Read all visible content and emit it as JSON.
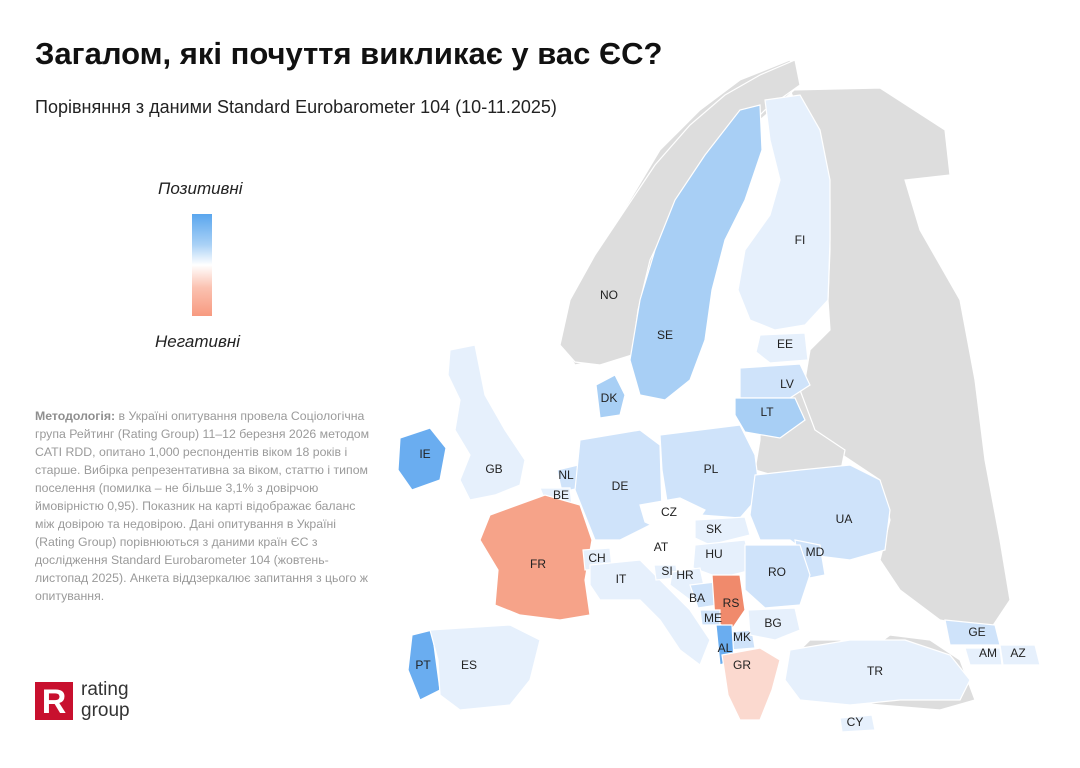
{
  "title": "Загалом, які почуття викликає у вас ЄС?",
  "subtitle": "Порівняння з даними Standard Eurobarometer 104 (10-11.2025)",
  "legend": {
    "top_label": "Позитивні",
    "bottom_label": "Негативні"
  },
  "methodology": {
    "label": "Методологія:",
    "text": " в Україні опитування провела Соціологічна група Рейтинг (Rating Group) 11–12 березня 2026 методом CATI RDD, опитано 1,000 респондентів віком 18 років і старше. Вибірка репрезентативна за віком, статтю і типом поселення (помилка – не більше 3,1% з довірчою ймовірністю 0,95). Показник на карті відображає баланс між довірою та недовірою. Дані опитування в Україні (Rating Group) порівнюються з даними країн ЄС з дослідження Standard Eurobarometer 104 (жовтень-листопад 2025). Анкета віддзеркалює запитання з цього ж опитування."
  },
  "logo": {
    "line1": "rating",
    "line2": "group",
    "mark_letter": "R"
  },
  "colors": {
    "brand_red": "#c8102e",
    "neutral_land": "#dddddd",
    "strong_blue": "#6aadf0",
    "mid_blue": "#a8cff5",
    "light_blue": "#cfe3fa",
    "pale_blue": "#e6f0fc",
    "white": "#ffffff",
    "pale_red": "#fbd9cf",
    "light_red": "#f9c0ad",
    "mid_red": "#f6a389",
    "strong_red": "#f08a6c"
  },
  "countries": [
    {
      "code": "NO",
      "fill": "neutral_land"
    },
    {
      "code": "SE",
      "fill": "mid_blue"
    },
    {
      "code": "FI",
      "fill": "pale_blue"
    },
    {
      "code": "EE",
      "fill": "pale_blue"
    },
    {
      "code": "LV",
      "fill": "light_blue"
    },
    {
      "code": "LT",
      "fill": "mid_blue"
    },
    {
      "code": "DK",
      "fill": "mid_blue"
    },
    {
      "code": "IE",
      "fill": "strong_blue"
    },
    {
      "code": "GB",
      "fill": "neutral_land"
    },
    {
      "code": "NL",
      "fill": "light_blue"
    },
    {
      "code": "BE",
      "fill": "pale_blue"
    },
    {
      "code": "DE",
      "fill": "light_blue"
    },
    {
      "code": "PL",
      "fill": "light_blue"
    },
    {
      "code": "CZ",
      "fill": "white"
    },
    {
      "code": "SK",
      "fill": "pale_blue"
    },
    {
      "code": "UA",
      "fill": "light_blue"
    },
    {
      "code": "FR",
      "fill": "mid_red"
    },
    {
      "code": "CH",
      "fill": "neutral_land"
    },
    {
      "code": "AT",
      "fill": "white"
    },
    {
      "code": "HU",
      "fill": "pale_blue"
    },
    {
      "code": "MD",
      "fill": "neutral_land"
    },
    {
      "code": "RO",
      "fill": "light_blue"
    },
    {
      "code": "IT",
      "fill": "pale_blue"
    },
    {
      "code": "SI",
      "fill": "pale_blue"
    },
    {
      "code": "HR",
      "fill": "pale_blue"
    },
    {
      "code": "BA",
      "fill": "neutral_land"
    },
    {
      "code": "RS",
      "fill": "neutral_land"
    },
    {
      "code": "ME",
      "fill": "neutral_land"
    },
    {
      "code": "MK",
      "fill": "neutral_land"
    },
    {
      "code": "AL",
      "fill": "neutral_land"
    },
    {
      "code": "BG",
      "fill": "pale_blue"
    },
    {
      "code": "GR",
      "fill": "pale_red"
    },
    {
      "code": "PT",
      "fill": "strong_blue"
    },
    {
      "code": "ES",
      "fill": "pale_blue"
    },
    {
      "code": "TR",
      "fill": "neutral_land"
    },
    {
      "code": "GE",
      "fill": "neutral_land"
    },
    {
      "code": "AM",
      "fill": "neutral_land"
    },
    {
      "code": "AZ",
      "fill": "neutral_land"
    },
    {
      "code": "CY",
      "fill": "pale_blue"
    }
  ],
  "overrides": {
    "GB": "pale_blue",
    "NO": "neutral_land",
    "CH": "pale_blue",
    "MD": "light_blue",
    "BA": "light_blue",
    "RS": "strong_red",
    "ME": "light_blue",
    "MK": "light_blue",
    "AL": "strong_blue",
    "TR": "pale_blue",
    "GE": "light_blue",
    "AM": "pale_blue",
    "AZ": "pale_blue"
  }
}
